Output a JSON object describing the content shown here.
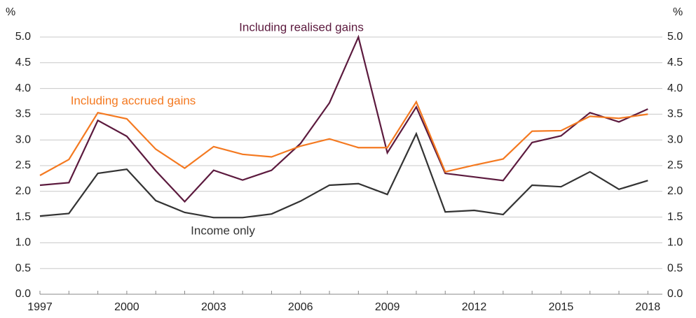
{
  "chart_data": {
    "type": "line",
    "unit": "%",
    "x": [
      1997,
      1998,
      1999,
      2000,
      2001,
      2002,
      2003,
      2004,
      2005,
      2006,
      2007,
      2008,
      2009,
      2010,
      2011,
      2012,
      2013,
      2014,
      2015,
      2016,
      2017,
      2018
    ],
    "xlim": [
      1997,
      2018.5
    ],
    "xticks": [
      1997,
      2000,
      2003,
      2006,
      2009,
      2012,
      2015,
      2018
    ],
    "ylim": [
      0,
      5.2
    ],
    "yticks": [
      {
        "value": 0,
        "label": "0.0"
      },
      0.5,
      {
        "value": 1,
        "label": "1.0"
      },
      1.5,
      {
        "value": 2,
        "label": "2.0"
      },
      2.5,
      {
        "value": 3,
        "label": "3.0"
      },
      3.5,
      {
        "value": 4,
        "label": "4.0"
      },
      4.5,
      {
        "value": 5,
        "label": "5.0"
      }
    ],
    "y2lim": [
      0,
      5.2
    ],
    "y2ticks": [
      {
        "value": 0,
        "label": "0.0"
      },
      0.5,
      {
        "value": 1,
        "label": "1.0"
      },
      1.5,
      {
        "value": 2,
        "label": "2.0"
      },
      2.5,
      {
        "value": 3,
        "label": "3.0"
      },
      3.5,
      {
        "value": 4,
        "label": "4.0"
      },
      4.5,
      {
        "value": 5,
        "label": "5.0"
      }
    ],
    "grid": true,
    "series": [
      {
        "name": "Including realised gains",
        "color": "#5c1a3e",
        "values": [
          2.12,
          2.17,
          3.38,
          3.07,
          2.4,
          1.8,
          2.41,
          2.22,
          2.41,
          2.93,
          3.72,
          5.0,
          2.75,
          3.64,
          2.35,
          2.28,
          2.21,
          2.95,
          3.08,
          3.53,
          3.35,
          3.6
        ]
      },
      {
        "name": "Including accrued gains",
        "color": "#f47920",
        "values": [
          2.31,
          2.62,
          3.53,
          3.41,
          2.82,
          2.45,
          2.87,
          2.72,
          2.67,
          2.88,
          3.02,
          2.85,
          2.85,
          3.74,
          2.38,
          2.51,
          2.63,
          3.17,
          3.18,
          3.46,
          3.42,
          3.5
        ]
      },
      {
        "name": "Income only",
        "color": "#333333",
        "values": [
          1.52,
          1.57,
          2.35,
          2.43,
          1.82,
          1.59,
          1.49,
          1.49,
          1.56,
          1.81,
          2.12,
          2.15,
          1.94,
          3.12,
          1.6,
          1.63,
          1.55,
          2.12,
          2.09,
          2.38,
          2.04,
          2.21
        ]
      }
    ]
  }
}
